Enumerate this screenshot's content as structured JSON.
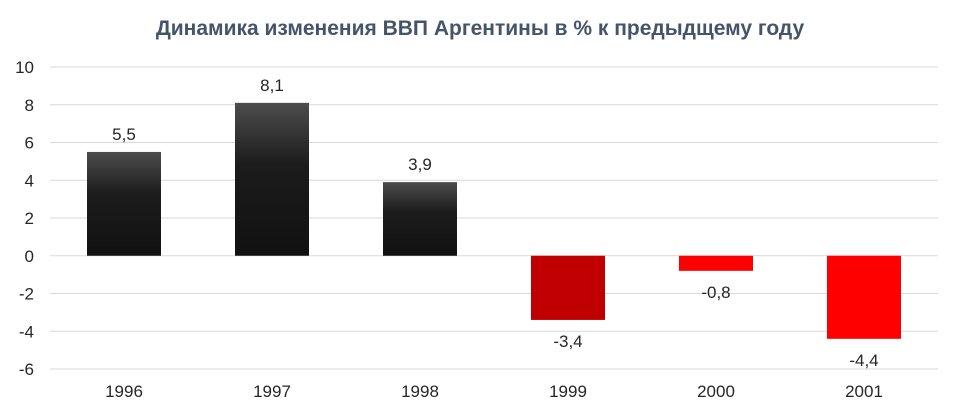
{
  "chart_data": {
    "type": "bar",
    "title": "Динамика изменения ВВП Аргентины в % к предыдщему году",
    "xlabel": "",
    "ylabel": "",
    "categories": [
      "1996",
      "1997",
      "1998",
      "1999",
      "2000",
      "2001"
    ],
    "values": [
      5.5,
      8.1,
      3.9,
      -3.4,
      -0.8,
      -4.4
    ],
    "data_labels": [
      "5,5",
      "8,1",
      "3,9",
      "-3,4",
      "-0,8",
      "-4,4"
    ],
    "ylim": [
      -6,
      10
    ],
    "yticks": [
      10,
      8,
      6,
      4,
      2,
      0,
      -2,
      -4,
      -6
    ],
    "grid": true,
    "legend": "none",
    "colors": {
      "positive_top": "#4d4d4d",
      "positive_bottom": "#111111",
      "bar_1999": "#c00000",
      "negative": "#ff0000",
      "grid": "#d9d9d9",
      "title": "#44546a",
      "text": "#262626"
    }
  }
}
